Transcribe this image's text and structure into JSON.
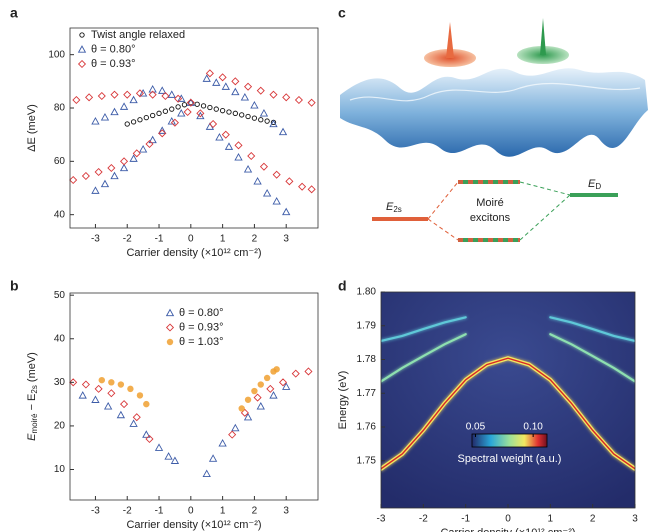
{
  "chart_data": [
    {
      "type": "scatter",
      "panel": "a",
      "x_label": "Carrier density (×10¹² cm⁻²)",
      "y_label": "ΔE (meV)",
      "xlim": [
        -3.8,
        4
      ],
      "ylim": [
        35,
        110
      ],
      "xticks": [
        -3,
        -2,
        -1,
        0,
        1,
        2,
        3
      ],
      "yticks": [
        40,
        60,
        80,
        100
      ],
      "series": [
        {
          "name": "Twist angle relaxed",
          "color": "#111111",
          "marker": "circle",
          "x": [
            -2.0,
            -1.8,
            -1.6,
            -1.4,
            -1.2,
            -1.0,
            -0.8,
            -0.6,
            -0.4,
            -0.2,
            0,
            0.2,
            0.4,
            0.6,
            0.8,
            1.0,
            1.2,
            1.4,
            1.6,
            1.8,
            2.0,
            2.2,
            2.4,
            2.6
          ],
          "values": [
            74.0,
            74.8,
            75.6,
            76.4,
            77.2,
            78.0,
            78.8,
            79.6,
            80.4,
            81.2,
            82.0,
            81.4,
            80.8,
            80.2,
            79.6,
            79.0,
            78.5,
            78.0,
            77.4,
            76.8,
            76.2,
            75.6,
            75.1,
            74.6
          ]
        },
        {
          "name": "θ = 0.80°",
          "color": "#3d5ca8",
          "marker": "triangle",
          "x": [
            -3,
            -2.7,
            -2.4,
            -2.1,
            -1.8,
            -1.5,
            -1.2,
            -0.9,
            -0.6,
            -0.3,
            0,
            -3,
            -2.7,
            -2.4,
            -2.1,
            -1.8,
            -1.5,
            -1.2,
            -0.9,
            -0.6,
            -0.3,
            0.5,
            0.8,
            1.1,
            1.4,
            1.7,
            2.0,
            2.3,
            2.6,
            2.9,
            0.3,
            0.6,
            0.9,
            1.2,
            1.5,
            1.8,
            2.1,
            2.4,
            2.7,
            3.0
          ],
          "values": [
            75,
            76.5,
            78.5,
            80.5,
            83,
            85.5,
            87,
            86.5,
            85,
            83.5,
            82,
            49,
            51.5,
            54.5,
            57.5,
            61,
            64.5,
            68,
            71.5,
            75,
            78,
            91,
            89.5,
            88,
            86,
            84,
            81,
            78,
            74,
            71,
            77,
            73,
            69,
            65.5,
            61.5,
            57,
            52.5,
            48,
            45,
            41
          ]
        },
        {
          "name": "θ = 0.93°",
          "color": "#d8383a",
          "marker": "diamond",
          "x": [
            -3.6,
            -3.2,
            -2.8,
            -2.4,
            -2.0,
            -1.6,
            -1.2,
            -0.8,
            -0.4,
            0,
            -3.7,
            -3.3,
            -2.9,
            -2.5,
            -2.1,
            -1.7,
            -1.3,
            -0.9,
            -0.5,
            -0.1,
            0.6,
            1.0,
            1.4,
            1.8,
            2.2,
            2.6,
            3.0,
            3.4,
            3.8,
            0.3,
            0.7,
            1.1,
            1.5,
            1.9,
            2.3,
            2.7,
            3.1,
            3.5,
            3.8
          ],
          "values": [
            83,
            84,
            84.5,
            85,
            85,
            85.5,
            85,
            84.5,
            83.5,
            82,
            53,
            54.5,
            56,
            57.5,
            60,
            63,
            66.5,
            70.5,
            74.5,
            78.5,
            93,
            91.5,
            90,
            88,
            86.5,
            85,
            84,
            83,
            82,
            78,
            74,
            70,
            66,
            62,
            58,
            55,
            52.5,
            50.5,
            49.5
          ]
        }
      ]
    },
    {
      "type": "scatter",
      "panel": "b",
      "x_label": "Carrier density (×10¹² cm⁻²)",
      "y_label": [
        {
          "text": "E"
        },
        {
          "sub": "moiré"
        },
        {
          "text": " − E"
        },
        {
          "sub": "2s"
        },
        {
          "text": " (meV)"
        }
      ],
      "xlim": [
        -3.8,
        4
      ],
      "ylim": [
        3,
        50.5
      ],
      "xticks": [
        -3,
        -2,
        -1,
        0,
        1,
        2,
        3
      ],
      "yticks": [
        10,
        20,
        30,
        40,
        50
      ],
      "series": [
        {
          "name": "θ = 0.80°",
          "color": "#3d5ca8",
          "marker": "triangle",
          "x": [
            -3.4,
            -3.0,
            -2.6,
            -2.2,
            -1.8,
            -1.4,
            -1.0,
            -0.7,
            -0.5,
            0.5,
            0.7,
            1.0,
            1.4,
            1.8,
            2.2,
            2.6,
            3.0
          ],
          "values": [
            27,
            26,
            24.5,
            22.5,
            20.5,
            18,
            15,
            13,
            12,
            9,
            12.5,
            16,
            19.5,
            22,
            24.5,
            27,
            29
          ]
        },
        {
          "name": "θ = 0.93°",
          "color": "#d8383a",
          "marker": "diamond",
          "x": [
            -3.7,
            -3.3,
            -2.9,
            -2.5,
            -2.1,
            -1.7,
            -1.3,
            1.3,
            1.7,
            2.1,
            2.5,
            2.9,
            3.3,
            3.7
          ],
          "values": [
            30,
            29.5,
            28.5,
            27.5,
            25,
            22,
            17,
            18,
            23,
            26.5,
            28.5,
            30,
            32,
            32.5
          ]
        },
        {
          "name": "θ = 1.03°",
          "color": "#f0a030",
          "marker": "dot",
          "x": [
            -2.8,
            -2.5,
            -2.2,
            -1.9,
            -1.6,
            -1.4,
            1.6,
            1.8,
            2.0,
            2.2,
            2.4,
            2.6,
            2.7
          ],
          "values": [
            30.5,
            30,
            29.5,
            28.5,
            27,
            25,
            24,
            26,
            28,
            29.5,
            31,
            32.5,
            33
          ]
        }
      ]
    },
    {
      "type": "line",
      "panel": "d",
      "x_label": "Carrier density (×10¹² cm⁻²)",
      "y_label": "Energy (eV)",
      "xlim": [
        -3,
        3
      ],
      "ylim": [
        1.736,
        1.8
      ],
      "xticks": [
        -3,
        -2,
        -1,
        0,
        1,
        2,
        3
      ],
      "yticks": [
        1.75,
        1.76,
        1.77,
        1.78,
        1.79,
        {
          "value": 1.8,
          "label": "1.80"
        }
      ],
      "series": [
        {
          "color": "#5ec8d8",
          "x": [
            -3,
            -2.5,
            -2,
            -1.5,
            -1
          ],
          "values": [
            1.7855,
            1.787,
            1.789,
            1.791,
            1.7925
          ]
        },
        {
          "color": "#5ec8d8",
          "x": [
            1,
            1.5,
            2,
            2.5,
            3
          ],
          "values": [
            1.7925,
            1.791,
            1.789,
            1.787,
            1.7855
          ]
        },
        {
          "color": "#8ee0b0",
          "x": [
            -3,
            -2.5,
            -2,
            -1.5,
            -1
          ],
          "values": [
            1.7735,
            1.7775,
            1.781,
            1.7845,
            1.7875
          ]
        },
        {
          "color": "#8ee0b0",
          "x": [
            1,
            1.5,
            2,
            2.5,
            3
          ],
          "values": [
            1.7875,
            1.7845,
            1.781,
            1.7775,
            1.7735
          ]
        },
        {
          "color": "#f2e860",
          "x": [
            -3,
            -2.5,
            -2,
            -1.5,
            -1,
            -0.5,
            0,
            0.5,
            1,
            1.5,
            2,
            2.5,
            3
          ],
          "values": [
            1.7476,
            1.752,
            1.759,
            1.767,
            1.774,
            1.7785,
            1.7804,
            1.7785,
            1.774,
            1.767,
            1.759,
            1.752,
            1.7476
          ]
        }
      ],
      "colorbar": {
        "label": "Spectral weight (a.u.)",
        "lim": [
          0.047,
          0.112
        ],
        "ticks": [
          0.05,
          {
            "value": 0.1,
            "label": "0.10"
          }
        ]
      }
    }
  ],
  "diagram": {
    "panel": "c",
    "levels": [
      {
        "symbol": "E",
        "subscript": "2s"
      },
      {
        "lines": [
          "Moiré",
          "excitons"
        ]
      },
      {
        "symbol": "E",
        "subscript": "D"
      }
    ]
  }
}
